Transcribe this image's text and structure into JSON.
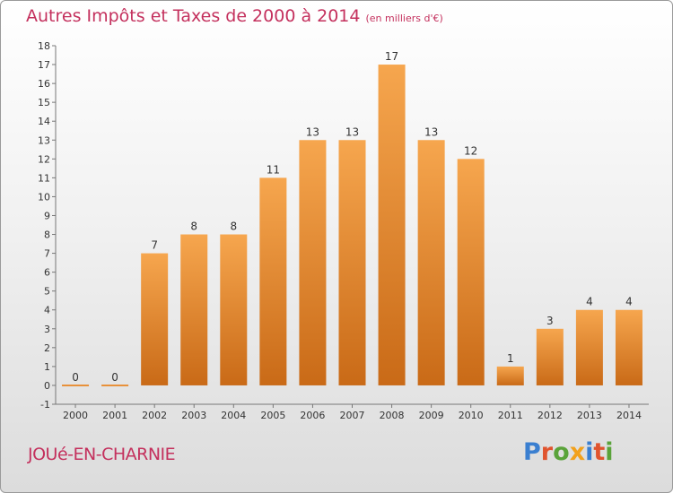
{
  "header": {
    "title": "Autres Impôts et Taxes de 2000 à 2014",
    "unit": "(en milliers d'€)"
  },
  "footer": {
    "town": "JOUé-EN-CHARNIE",
    "logo_text": "Proxiti",
    "logo_colors": [
      "#3a7fd0",
      "#e0542e",
      "#5aa33a",
      "#f2a11c",
      "#3a7fd0",
      "#e0542e",
      "#5aa33a"
    ]
  },
  "colors": {
    "title": "#c4305d",
    "bar_top": "#f6a64e",
    "bar_bottom": "#c96a17"
  },
  "chart_data": {
    "type": "bar",
    "title": "Autres Impôts et Taxes de 2000 à 2014",
    "xlabel": "",
    "ylabel": "",
    "categories": [
      "2000",
      "2001",
      "2002",
      "2003",
      "2004",
      "2005",
      "2006",
      "2007",
      "2008",
      "2009",
      "2010",
      "2011",
      "2012",
      "2013",
      "2014"
    ],
    "values": [
      0,
      0,
      7,
      8,
      8,
      11,
      13,
      13,
      17,
      13,
      12,
      1,
      3,
      4,
      4
    ],
    "ylim": [
      -1,
      18
    ],
    "yticks": [
      -1,
      0,
      1,
      2,
      3,
      4,
      5,
      6,
      7,
      8,
      9,
      10,
      11,
      12,
      13,
      14,
      15,
      16,
      17,
      18
    ],
    "grid": false,
    "legend": "none"
  }
}
